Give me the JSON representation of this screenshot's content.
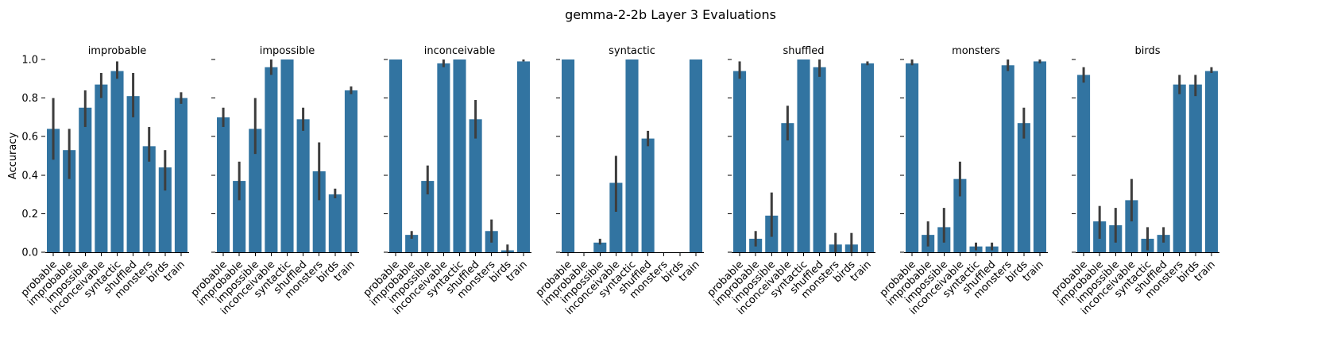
{
  "figure": {
    "title": "gemma-2-2b Layer 3 Evaluations"
  },
  "colors": {
    "bar": "#3274a1",
    "errorbar": "#3d3d3d"
  },
  "chart_data": {
    "type": "bar",
    "ylabel": "Accuracy",
    "ylim": [
      0,
      1.0
    ],
    "yticks": [
      0.0,
      0.2,
      0.4,
      0.6,
      0.8,
      1.0
    ],
    "ytick_labels": [
      "0.0",
      "0.2",
      "0.4",
      "0.6",
      "0.8",
      "1.0"
    ],
    "categories": [
      "probable",
      "improbable",
      "impossible",
      "inconceivable",
      "syntactic",
      "shuffled",
      "monsters",
      "birds",
      "train"
    ],
    "grid": false,
    "panels": [
      {
        "title": "improbable",
        "values": [
          0.64,
          0.53,
          0.75,
          0.87,
          0.94,
          0.81,
          0.55,
          0.44,
          0.8
        ],
        "err_low": [
          0.48,
          0.38,
          0.65,
          0.8,
          0.9,
          0.7,
          0.47,
          0.32,
          0.77
        ],
        "err_high": [
          0.8,
          0.64,
          0.84,
          0.93,
          0.99,
          0.93,
          0.65,
          0.53,
          0.83
        ]
      },
      {
        "title": "impossible",
        "values": [
          0.7,
          0.37,
          0.64,
          0.96,
          1.0,
          0.69,
          0.42,
          0.3,
          0.84
        ],
        "err_low": [
          0.65,
          0.27,
          0.51,
          0.92,
          1.0,
          0.63,
          0.27,
          0.28,
          0.82
        ],
        "err_high": [
          0.75,
          0.47,
          0.8,
          1.0,
          1.0,
          0.75,
          0.57,
          0.33,
          0.86
        ]
      },
      {
        "title": "inconceivable",
        "values": [
          1.0,
          0.09,
          0.37,
          0.98,
          1.0,
          0.69,
          0.11,
          0.01,
          0.99
        ],
        "err_low": [
          1.0,
          0.07,
          0.3,
          0.96,
          1.0,
          0.59,
          0.05,
          0.0,
          0.99
        ],
        "err_high": [
          1.0,
          0.11,
          0.45,
          1.0,
          1.0,
          0.79,
          0.17,
          0.04,
          1.0
        ]
      },
      {
        "title": "syntactic",
        "values": [
          1.0,
          0.0,
          0.05,
          0.36,
          1.0,
          0.59,
          0.0,
          0.0,
          1.0
        ],
        "err_low": [
          1.0,
          0.0,
          0.04,
          0.21,
          1.0,
          0.55,
          0.0,
          0.0,
          1.0
        ],
        "err_high": [
          1.0,
          0.0,
          0.07,
          0.5,
          1.0,
          0.63,
          0.0,
          0.0,
          1.0
        ]
      },
      {
        "title": "shuffled",
        "values": [
          0.94,
          0.07,
          0.19,
          0.67,
          1.0,
          0.96,
          0.04,
          0.04,
          0.98
        ],
        "err_low": [
          0.9,
          0.03,
          0.08,
          0.58,
          1.0,
          0.91,
          0.0,
          0.0,
          0.97
        ],
        "err_high": [
          0.99,
          0.11,
          0.31,
          0.76,
          1.0,
          1.0,
          0.1,
          0.1,
          0.99
        ]
      },
      {
        "title": "monsters",
        "values": [
          0.98,
          0.09,
          0.13,
          0.38,
          0.03,
          0.03,
          0.97,
          0.67,
          0.99
        ],
        "err_low": [
          0.97,
          0.03,
          0.05,
          0.29,
          0.01,
          0.01,
          0.94,
          0.59,
          0.98
        ],
        "err_high": [
          1.0,
          0.16,
          0.23,
          0.47,
          0.05,
          0.05,
          1.0,
          0.75,
          1.0
        ]
      },
      {
        "title": "birds",
        "values": [
          0.92,
          0.16,
          0.14,
          0.27,
          0.07,
          0.09,
          0.87,
          0.87,
          0.94
        ],
        "err_low": [
          0.88,
          0.07,
          0.05,
          0.16,
          0.01,
          0.05,
          0.82,
          0.81,
          0.93
        ],
        "err_high": [
          0.96,
          0.24,
          0.23,
          0.38,
          0.13,
          0.13,
          0.92,
          0.92,
          0.96
        ]
      }
    ]
  }
}
